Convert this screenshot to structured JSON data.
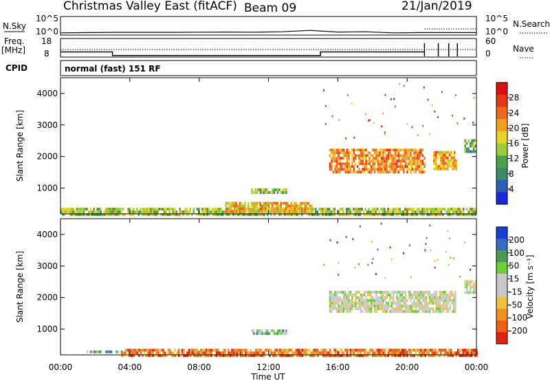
{
  "header": {
    "station": "Christmas Valley East (fitACF)",
    "beam": "Beam 09",
    "date": "21/Jan/2019"
  },
  "panels": {
    "nsky_label": "N.Sky",
    "nsky_ticks": [
      "10^5",
      "10^0"
    ],
    "nsearch_label": "N.Search",
    "nsearch_ticks": [
      "10^5",
      "10^0"
    ],
    "freq_label_1": "Freq.",
    "freq_label_2": "[MHz]",
    "freq_ticks": [
      "18",
      "8"
    ],
    "nave_label": "Nave",
    "nave_ticks": [
      "60",
      "0"
    ],
    "cpid_label": "CPID",
    "cpid_value": "normal (fast) 151 RF"
  },
  "chart_data": [
    {
      "type": "line",
      "name": "nsky-nsearch",
      "x": [
        "00:00",
        "02:00",
        "04:00",
        "06:00",
        "08:00",
        "10:00",
        "12:00",
        "14:00",
        "15:30",
        "16:00",
        "18:00",
        "20:00",
        "21:00",
        "22:00",
        "23:00",
        "24:00"
      ],
      "values": [
        0.15,
        0.2,
        0.25,
        0.25,
        0.25,
        0.28,
        0.3,
        0.28,
        0.35,
        0.6,
        0.3,
        0.35,
        0.15,
        0.2,
        0.2,
        0.2
      ]
    },
    {
      "type": "line",
      "name": "frequency",
      "x_hours": [
        0,
        3,
        3,
        15,
        15,
        21,
        21
      ],
      "values": [
        10.5,
        10.5,
        8.5,
        8.5,
        10.5,
        10.5,
        10.5
      ],
      "ylim": [
        8,
        18
      ]
    },
    {
      "type": "heatmap",
      "name": "power",
      "ylabel": "Slant Range [km]",
      "xlabel": "Time UT",
      "y_ticks": [
        "1000",
        "2000",
        "3000",
        "4000"
      ],
      "x_ticks": [
        "00:00",
        "04:00",
        "08:00",
        "12:00",
        "16:00",
        "20:00",
        "00:00"
      ],
      "ylim": [
        180,
        4500
      ],
      "colorbar_label": "Power [dB]",
      "colorbar_ticks": [
        "4",
        "8",
        "12",
        "16",
        "20",
        "24",
        "28"
      ],
      "colors": [
        "#1c28d8",
        "#2e5fb8",
        "#3c8a6a",
        "#4ca24a",
        "#9ccc38",
        "#e8d22a",
        "#f0a020",
        "#ee6a1a",
        "#e43818",
        "#d81010"
      ],
      "regions": [
        {
          "t0": 0.0,
          "t1": 24.0,
          "r0": 200,
          "r1": 450,
          "level": 0.45
        },
        {
          "t0": 9.5,
          "t1": 14.5,
          "r0": 300,
          "r1": 600,
          "level": 0.6
        },
        {
          "t0": 11.0,
          "t1": 13.0,
          "r0": 900,
          "r1": 1050,
          "level": 0.4
        },
        {
          "t0": 15.5,
          "t1": 21.0,
          "r0": 1550,
          "r1": 2300,
          "level": 0.7
        },
        {
          "t0": 21.5,
          "t1": 22.8,
          "r0": 1650,
          "r1": 2200,
          "level": 0.65
        },
        {
          "t0": 23.3,
          "t1": 23.9,
          "r0": 2200,
          "r1": 2600,
          "level": 0.35
        }
      ]
    },
    {
      "type": "heatmap",
      "name": "velocity",
      "ylabel": "Slant Range [km]",
      "xlabel": "Time UT",
      "y_ticks": [
        "1000",
        "2000",
        "3000",
        "4000"
      ],
      "x_ticks": [
        "00:00",
        "04:00",
        "08:00",
        "12:00",
        "16:00",
        "20:00",
        "00:00"
      ],
      "ylim": [
        180,
        4500
      ],
      "colorbar_label": "Velocity [m s⁻¹]",
      "colorbar_ticks": [
        "200",
        "100",
        "50",
        "15",
        "-15",
        "-50",
        "-100",
        "-200"
      ],
      "colors": [
        "#1a3fd0",
        "#3a6ac8",
        "#4a9a58",
        "#6ad03a",
        "#c8c8c8",
        "#c8c8c8",
        "#f0c040",
        "#f09020",
        "#ee6010",
        "#e02010"
      ],
      "regions": [
        {
          "t0": 1.5,
          "t1": 3.5,
          "r0": 320,
          "r1": 380,
          "level": 0.35
        },
        {
          "t0": 3.5,
          "t1": 21.0,
          "r0": 200,
          "r1": 450,
          "level": 0.8
        },
        {
          "t0": 21.0,
          "t1": 24.0,
          "r0": 200,
          "r1": 450,
          "level": 0.85
        },
        {
          "t0": 11.0,
          "t1": 13.0,
          "r0": 900,
          "r1": 1050,
          "level": 0.35
        },
        {
          "t0": 15.5,
          "t1": 22.8,
          "r0": 1600,
          "r1": 2250,
          "level": 0.5
        },
        {
          "t0": 23.3,
          "t1": 23.9,
          "r0": 2200,
          "r1": 2600,
          "level": 0.5
        }
      ]
    }
  ]
}
